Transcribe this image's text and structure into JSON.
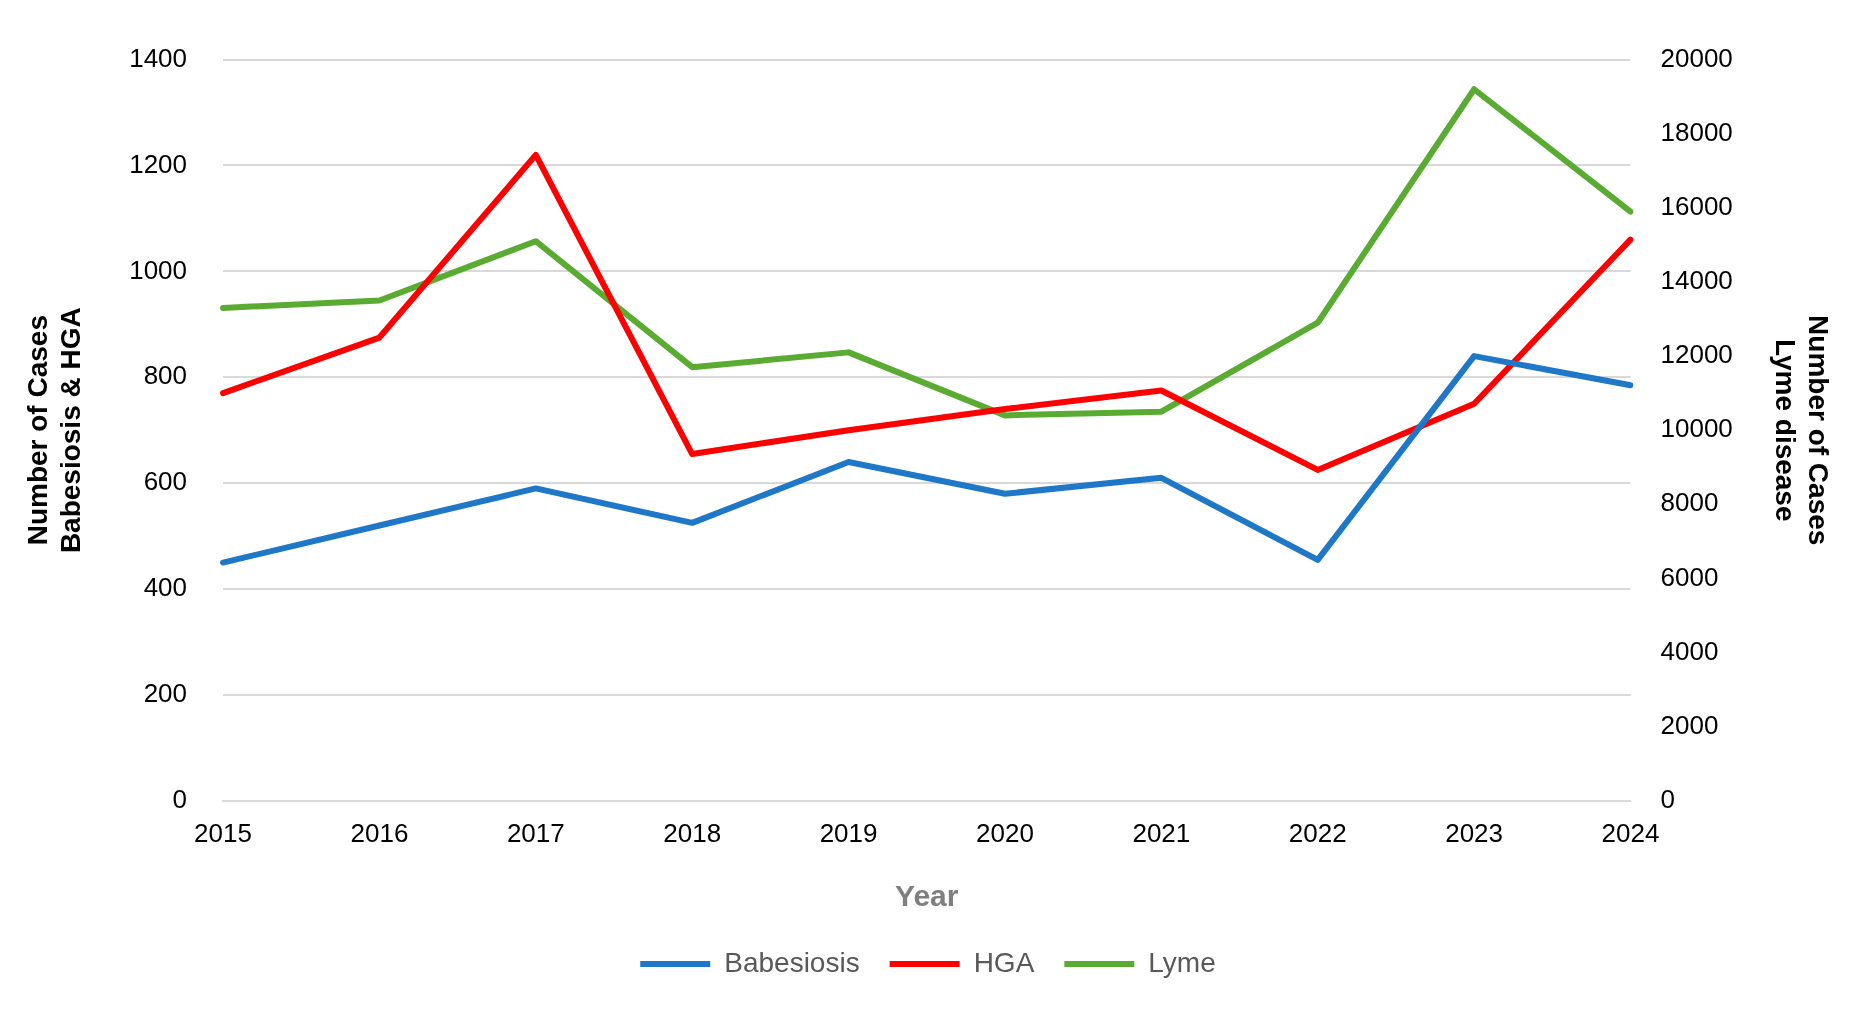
{
  "chart_data": {
    "type": "line",
    "xlabel": "Year",
    "ylabel": "Number of Cases\nBabesiosis & HGA",
    "y2label": "Number of Cases\nLyme disease",
    "categories": [
      "2015",
      "2016",
      "2017",
      "2018",
      "2019",
      "2020",
      "2021",
      "2022",
      "2023",
      "2024"
    ],
    "series": [
      {
        "name": "Babesiosis",
        "color": "#1f77c8",
        "values": [
          450,
          520,
          590,
          525,
          640,
          580,
          610,
          455,
          840,
          785
        ]
      },
      {
        "name": "HGA",
        "color": "#ff0000",
        "values": [
          770,
          875,
          1220,
          655,
          700,
          740,
          775,
          625,
          750,
          1060
        ]
      },
      {
        "name": "Lyme",
        "color": "#5aab32",
        "axis": "y2",
        "values": [
          13300,
          13500,
          15100,
          11700,
          12100,
          10400,
          10500,
          12900,
          19200,
          15900
        ]
      }
    ],
    "ylim": [
      0,
      1400
    ],
    "yticks": [
      0,
      200,
      400,
      600,
      800,
      1000,
      1200,
      1400
    ],
    "y2lim": [
      0,
      20000
    ],
    "y2ticks": [
      0,
      2000,
      4000,
      6000,
      8000,
      10000,
      12000,
      14000,
      16000,
      18000,
      20000
    ],
    "grid": "y",
    "legend": "bottom",
    "marker": "none",
    "line_style": "solid"
  }
}
